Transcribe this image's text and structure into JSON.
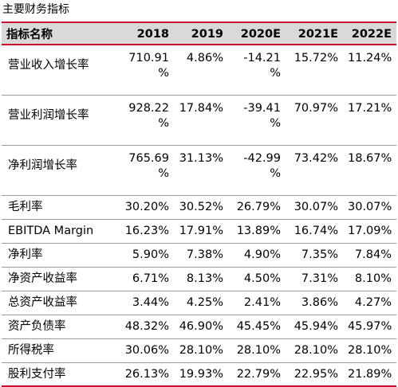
{
  "title": "主要财务指标",
  "table": {
    "headers": [
      "指标名称",
      "2018",
      "2019",
      "2020E",
      "2021E",
      "2022E"
    ],
    "rows": [
      {
        "label": "营业收入增长率",
        "values": [
          "710.91 %",
          "4.86%",
          "-14.21 %",
          "15.72%",
          "11.24%"
        ]
      },
      {
        "label": "营业利润增长率",
        "values": [
          "928.22 %",
          "17.84%",
          "-39.41 %",
          "70.97%",
          "17.21%"
        ]
      },
      {
        "label": "净利润增长率",
        "values": [
          "765.69 %",
          "31.13%",
          "-42.99 %",
          "73.42%",
          "18.67%"
        ]
      },
      {
        "label": "毛利率",
        "values": [
          "30.20%",
          "30.52%",
          "26.79%",
          "30.07%",
          "30.07%"
        ]
      },
      {
        "label": "EBITDA Margin",
        "values": [
          "16.23%",
          "17.91%",
          "13.89%",
          "16.74%",
          "17.09%"
        ]
      },
      {
        "label": "净利率",
        "values": [
          "5.90%",
          "7.38%",
          "4.90%",
          "7.35%",
          "7.84%"
        ]
      },
      {
        "label": "净资产收益率",
        "values": [
          "6.71%",
          "8.13%",
          "4.50%",
          "7.31%",
          "8.10%"
        ]
      },
      {
        "label": "总资产收益率",
        "values": [
          "3.44%",
          "4.25%",
          "2.41%",
          "3.86%",
          "4.27%"
        ]
      },
      {
        "label": "资产负债率",
        "values": [
          "48.32%",
          "46.90%",
          "45.45%",
          "45.94%",
          "45.97%"
        ]
      },
      {
        "label": "所得税率",
        "values": [
          "30.06%",
          "28.10%",
          "28.10%",
          "28.10%",
          "28.10%"
        ]
      },
      {
        "label": "股利支付率",
        "values": [
          "26.13%",
          "19.93%",
          "22.79%",
          "22.95%",
          "21.89%"
        ]
      }
    ]
  }
}
